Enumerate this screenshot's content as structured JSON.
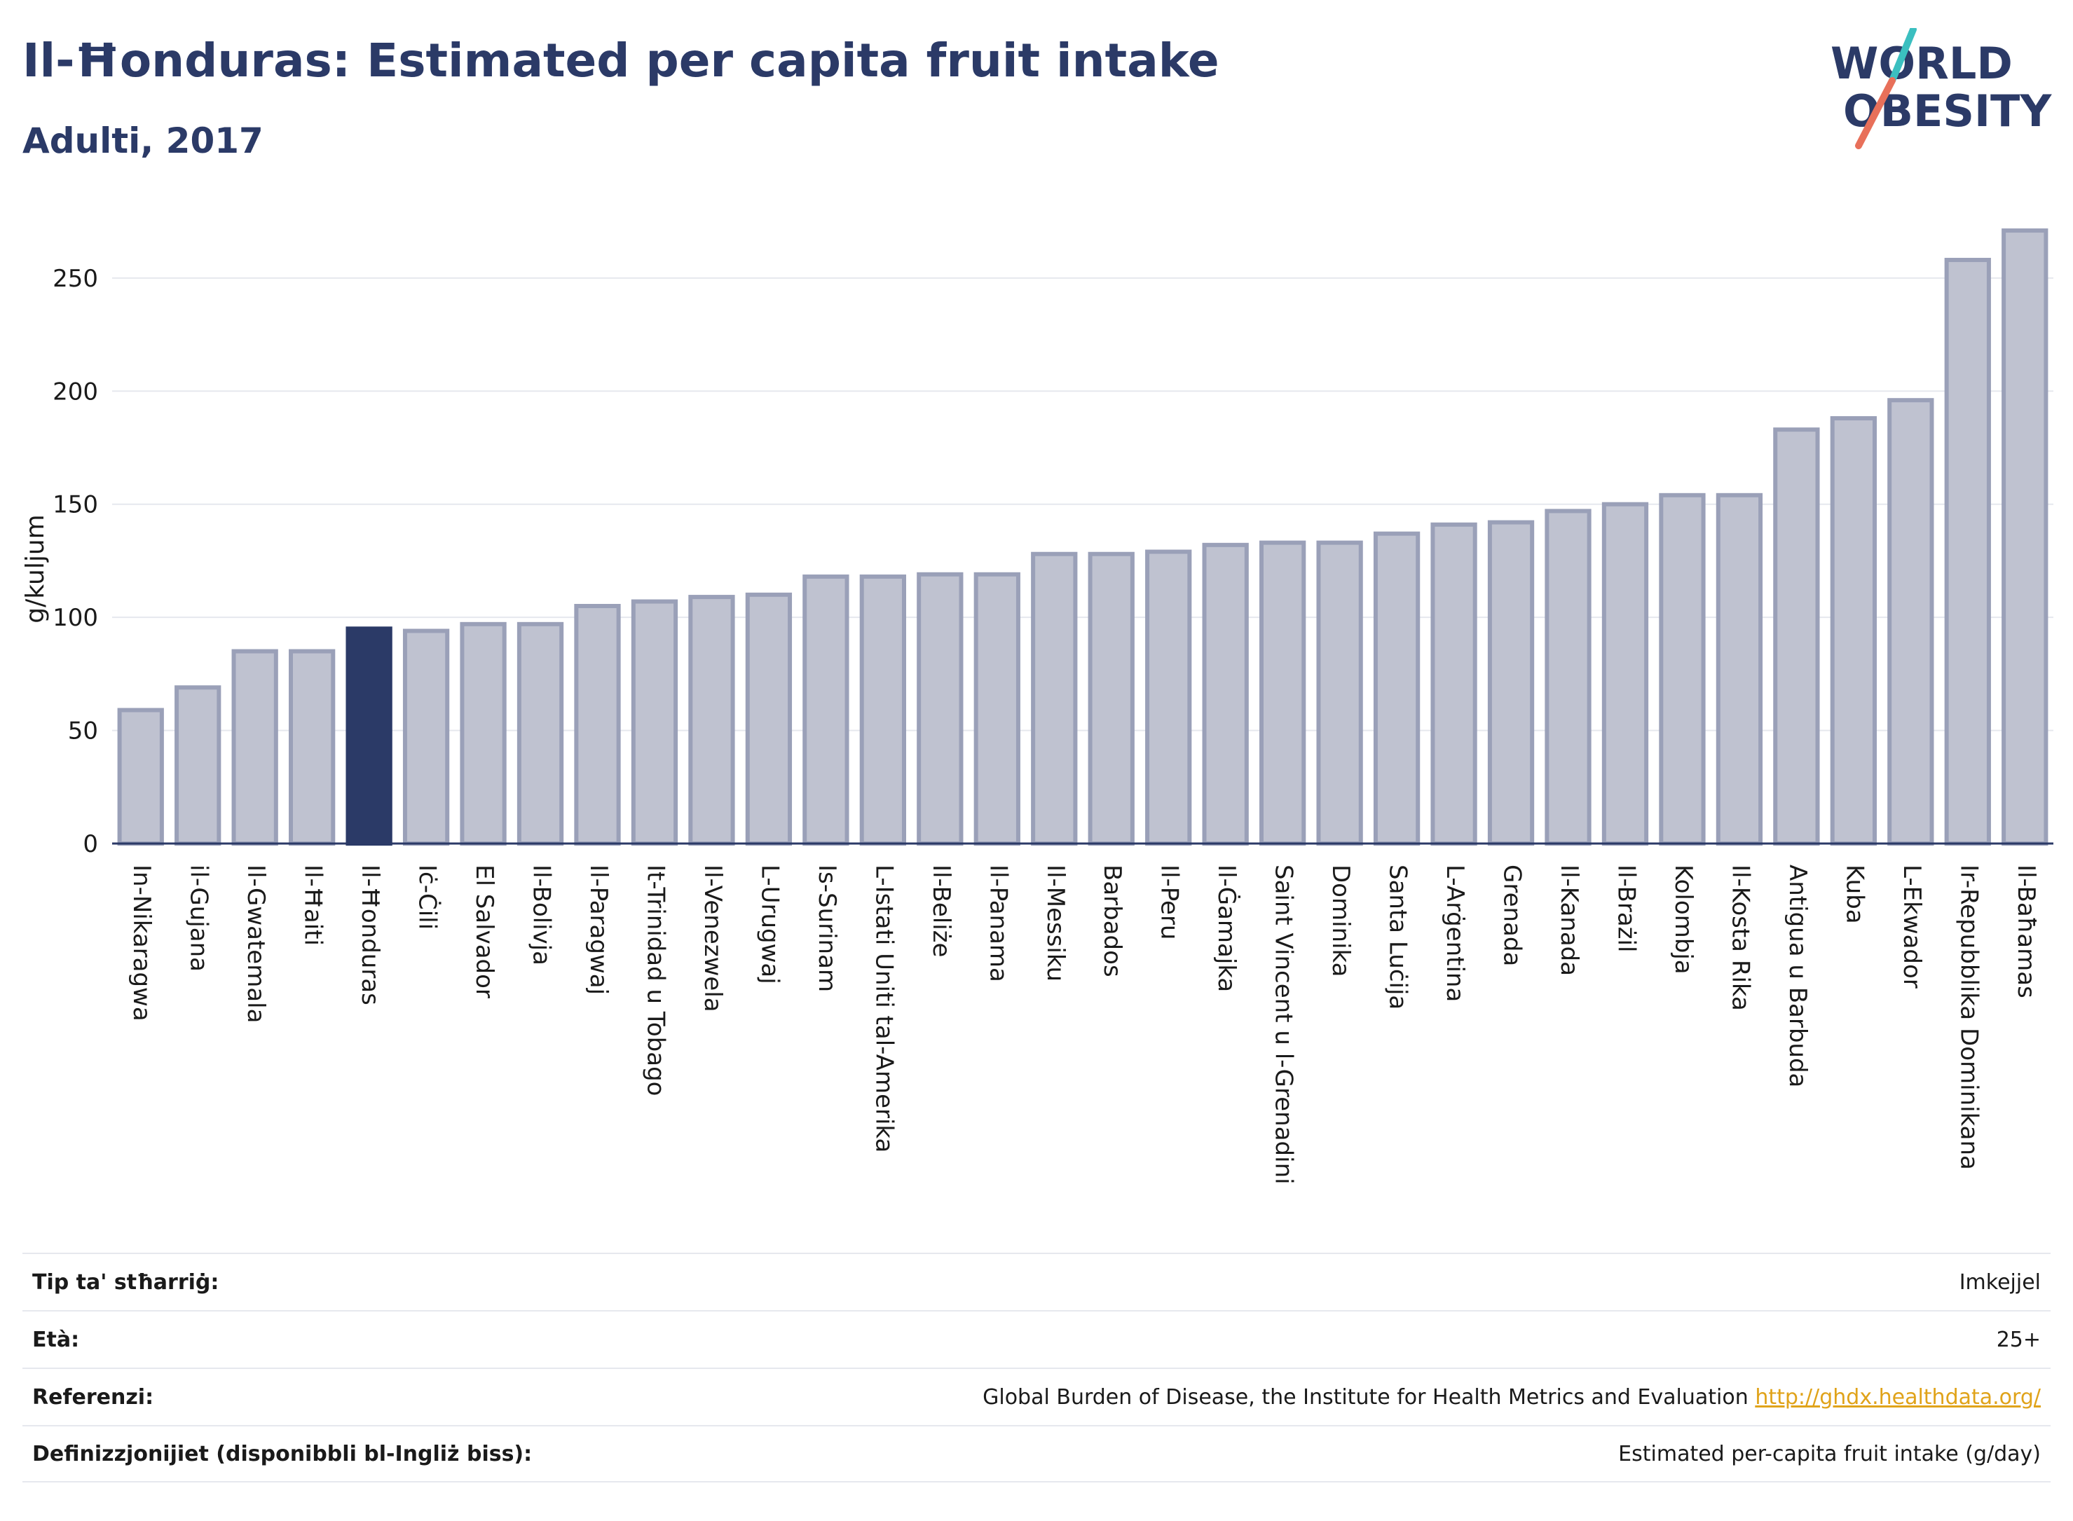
{
  "header": {
    "title": "Il-Ħonduras: Estimated per capita fruit intake",
    "subtitle": "Adulti, 2017"
  },
  "logo": {
    "line1": "WORLD",
    "line2": "OBESITY",
    "colors": {
      "text": "#2b3a67",
      "slash_top": "#3bbfc0",
      "slash_bottom": "#e8705a"
    }
  },
  "colors": {
    "bar_default": "#bfc2d0",
    "bar_default_stroke": "#9aa0b8",
    "bar_highlight": "#2b3a67",
    "grid": "#e6e8ee",
    "axis": "#2b3a67",
    "tick_text": "#1a1a1a"
  },
  "chart_data": {
    "type": "bar",
    "ylabel": "g/kuljum",
    "ylim": [
      0,
      280
    ],
    "yticks": [
      0,
      50,
      100,
      150,
      200,
      250
    ],
    "grid": true,
    "highlight": "Il-Ħonduras",
    "categories": [
      "In-Nikaragwa",
      "il-Gujana",
      "Il-Gwatemala",
      "Il-Ħaiti",
      "Il-Ħonduras",
      "Iċ-Ċili",
      "El Salvador",
      "Il-Bolivja",
      "Il-Paragwaj",
      "It-Trinidad u Tobago",
      "Il-Venezwela",
      "L-Urugwaj",
      "Is-Surinam",
      "L-Istati Uniti tal-Amerika",
      "Il-Beliże",
      "Il-Panama",
      "Il-Messiku",
      "Barbados",
      "Il-Peru",
      "Il-Ġamajka",
      "Saint Vincent u l-Grenadini",
      "Dominika",
      "Santa Luċija",
      "L-Arġentina",
      "Grenada",
      "Il-Kanada",
      "Il-Brażil",
      "Kolombja",
      "Il-Kosta Rika",
      "Antigua u Barbuda",
      "Kuba",
      "L-Ekwador",
      "Ir-Repubblika Dominikana",
      "Il-Baħamas"
    ],
    "values": [
      59,
      69,
      85,
      85,
      95,
      94,
      97,
      97,
      105,
      107,
      109,
      110,
      118,
      118,
      119,
      119,
      128,
      128,
      129,
      132,
      133,
      133,
      137,
      141,
      142,
      147,
      150,
      154,
      154,
      183,
      188,
      196,
      258,
      271
    ]
  },
  "meta": {
    "rows": [
      {
        "key": "Tip ta' stħarriġ:",
        "value": "Imkejjel"
      },
      {
        "key": "Età:",
        "value": "25+"
      },
      {
        "key": "Referenzi:",
        "value": "Global Burden of Disease, the Institute for Health Metrics and Evaluation",
        "link": "http://ghdx.healthdata.org/"
      },
      {
        "key": "Definizzjonijiet (disponibbli bl-Ingliż biss):",
        "value": "Estimated per-capita fruit intake (g/day)"
      }
    ]
  }
}
